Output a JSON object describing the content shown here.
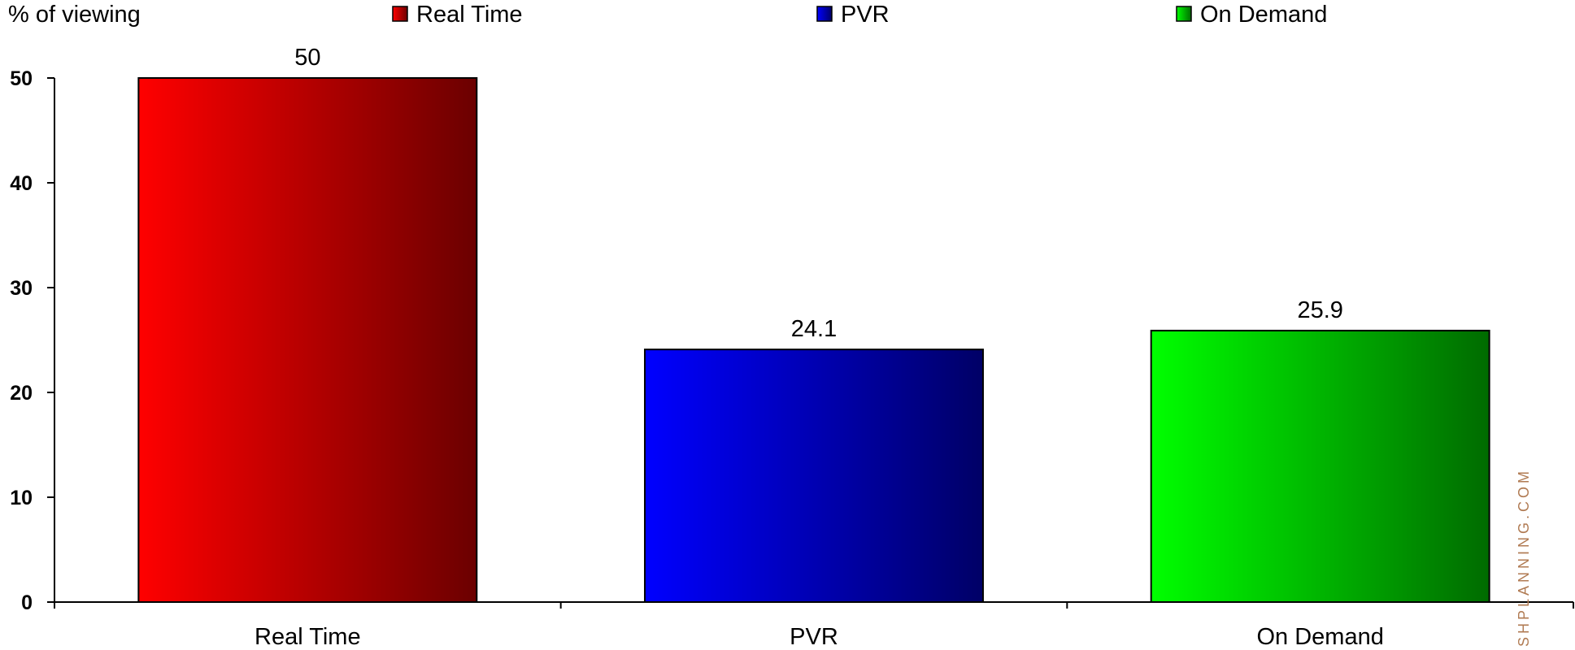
{
  "chart_data": {
    "type": "bar",
    "ylabel": "% of viewing",
    "xlabel": "",
    "categories": [
      "Real Time",
      "PVR",
      "On Demand"
    ],
    "values": [
      50,
      24.1,
      25.9
    ],
    "data_labels": [
      "50",
      "24.1",
      "25.9"
    ],
    "ylim": [
      0,
      50
    ],
    "yticks": [
      0,
      10,
      20,
      30,
      40,
      50
    ],
    "grid": false,
    "legend": {
      "placement": "top",
      "entries": [
        "Real Time",
        "PVR",
        "On Demand"
      ]
    },
    "colors": [
      {
        "light": "#ff0000",
        "dark": "#6b0000"
      },
      {
        "light": "#0000ff",
        "dark": "#000066"
      },
      {
        "light": "#00ff00",
        "dark": "#006b00"
      }
    ]
  },
  "watermark": "SHPLANNING.COM"
}
